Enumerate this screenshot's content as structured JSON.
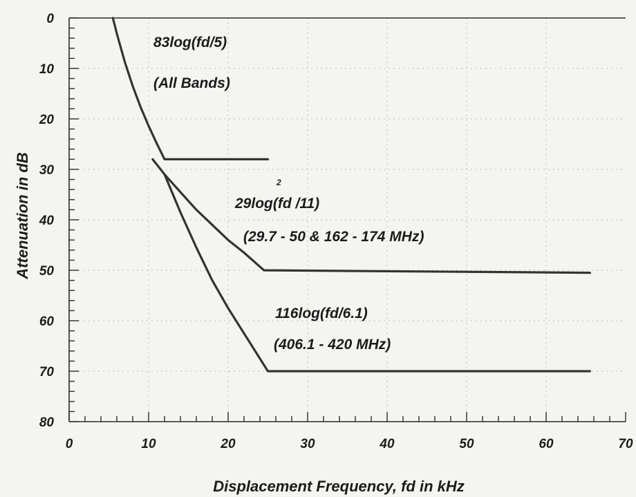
{
  "chart_data": {
    "type": "line",
    "xlabel": "Displacement Frequency, fd in kHz",
    "ylabel": "Attenuation in dB",
    "xlim": [
      0,
      70
    ],
    "ylim": [
      0,
      80
    ],
    "y_inverted": true,
    "x_ticks": [
      "0",
      "10",
      "20",
      "30",
      "40",
      "50",
      "60",
      "70"
    ],
    "y_ticks": [
      "0",
      "10",
      "20",
      "30",
      "40",
      "50",
      "60",
      "70",
      "80"
    ],
    "grid": true,
    "series": [
      {
        "x": [
          5.5,
          6.0,
          7.0,
          8.0,
          9.0,
          10.0,
          11.0,
          12.0,
          25.0
        ],
        "y": [
          0,
          3.1,
          8.7,
          13.5,
          17.7,
          21.4,
          24.8,
          28.0,
          28.0
        ]
      },
      {
        "x": [
          10.5,
          12,
          14,
          16,
          18,
          20,
          22,
          24.5,
          65.5
        ],
        "y": [
          28.0,
          31.0,
          34.5,
          38.0,
          41.0,
          44.0,
          46.5,
          50.0,
          50.5
        ]
      },
      {
        "x": [
          12,
          14,
          16,
          18,
          20,
          22,
          25,
          65.5
        ],
        "y": [
          31.0,
          38.5,
          45.5,
          52.0,
          57.5,
          62.5,
          70.0,
          70.0
        ]
      }
    ],
    "annotations": {
      "a1": "83log(fd/5)",
      "a1b": "(All Bands)",
      "a2": "29log(fd /11)",
      "a2_sup": "2",
      "a2b": "(29.7 - 50 & 162 - 174 MHz)",
      "a3": "116log(fd/6.1)",
      "a3b": "(406.1 - 420 MHz)"
    }
  }
}
